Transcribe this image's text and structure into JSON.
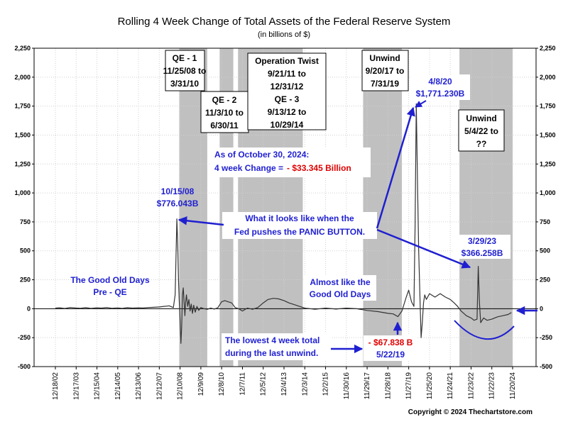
{
  "chart_data": {
    "type": "line",
    "title": "Rolling 4 Week Change of Total Assets of the Federal Reserve System",
    "subtitle": "(in billions of $)",
    "ylim": [
      -500,
      2250
    ],
    "yticks": [
      -500,
      -250,
      0,
      250,
      500,
      750,
      1000,
      1250,
      1500,
      1750,
      2000,
      2250
    ],
    "ytick_labels": [
      "-500",
      "-250",
      "0",
      "250",
      "500",
      "750",
      "1,000",
      "1,250",
      "1,500",
      "1,750",
      "2,000",
      "2,250"
    ],
    "ytick_labels_right": [
      "-500",
      "-250",
      "0",
      "250",
      "500",
      "750",
      "1,000",
      "1,250",
      "1,500",
      "1,750",
      "2,000",
      "2,250"
    ],
    "xlim": [
      "2002-12-18",
      "2024-11-20"
    ],
    "xtick_dates": [
      "2002-12-18",
      "2003-12-17",
      "2004-12-15",
      "2005-12-14",
      "2006-12-13",
      "2007-12-12",
      "2008-12-10",
      "2009-12-09",
      "2010-12-08",
      "2011-12-07",
      "2012-12-05",
      "2013-12-04",
      "2014-12-03",
      "2015-12-02",
      "2016-11-30",
      "2017-11-29",
      "2018-11-28",
      "2019-11-27",
      "2020-11-25",
      "2021-11-24",
      "2022-11-23",
      "2023-11-22",
      "2024-11-20"
    ],
    "xtick_labels": [
      "12/18/02",
      "12/17/03",
      "12/15/04",
      "12/14/05",
      "12/13/06",
      "12/12/07",
      "12/10/08",
      "12/9/09",
      "12/8/10",
      "12/7/11",
      "12/5/12",
      "12/4/13",
      "12/3/14",
      "12/2/15",
      "11/30/16",
      "11/29/17",
      "11/28/18",
      "11/27/19",
      "11/25/20",
      "11/24/21",
      "11/23/22",
      "11/22/23",
      "11/20/24"
    ],
    "shaded_periods": [
      {
        "start": "2008-11-25",
        "end": "2010-03-31"
      },
      {
        "start": "2010-11-03",
        "end": "2011-06-30"
      },
      {
        "start": "2011-09-21",
        "end": "2014-10-29"
      },
      {
        "start": "2017-09-20",
        "end": "2019-07-31"
      },
      {
        "start": "2022-05-04",
        "end": "2024-11-20"
      }
    ],
    "series": [
      {
        "points": [
          [
            "2002-12-18",
            5
          ],
          [
            "2003-03-01",
            8
          ],
          [
            "2003-06-01",
            2
          ],
          [
            "2003-09-01",
            10
          ],
          [
            "2003-12-17",
            6
          ],
          [
            "2004-03-01",
            4
          ],
          [
            "2004-06-01",
            9
          ],
          [
            "2004-09-01",
            3
          ],
          [
            "2004-12-15",
            8
          ],
          [
            "2005-03-01",
            5
          ],
          [
            "2005-06-01",
            10
          ],
          [
            "2005-09-01",
            4
          ],
          [
            "2005-12-14",
            7
          ],
          [
            "2006-03-01",
            3
          ],
          [
            "2006-06-01",
            9
          ],
          [
            "2006-09-01",
            5
          ],
          [
            "2006-12-13",
            8
          ],
          [
            "2007-03-01",
            6
          ],
          [
            "2007-06-01",
            10
          ],
          [
            "2007-09-01",
            12
          ],
          [
            "2007-12-12",
            15
          ],
          [
            "2008-03-01",
            20
          ],
          [
            "2008-06-01",
            25
          ],
          [
            "2008-08-15",
            10
          ],
          [
            "2008-09-15",
            120
          ],
          [
            "2008-10-15",
            776
          ],
          [
            "2008-10-29",
            560
          ],
          [
            "2008-11-12",
            250
          ],
          [
            "2008-11-26",
            60
          ],
          [
            "2008-12-10",
            -100
          ],
          [
            "2008-12-24",
            -300
          ],
          [
            "2009-01-07",
            -150
          ],
          [
            "2009-01-21",
            120
          ],
          [
            "2009-02-04",
            180
          ],
          [
            "2009-02-18",
            60
          ],
          [
            "2009-03-04",
            -60
          ],
          [
            "2009-03-18",
            60
          ],
          [
            "2009-04-01",
            120
          ],
          [
            "2009-04-22",
            20
          ],
          [
            "2009-05-13",
            80
          ],
          [
            "2009-06-03",
            -20
          ],
          [
            "2009-06-24",
            40
          ],
          [
            "2009-07-15",
            -40
          ],
          [
            "2009-08-05",
            30
          ],
          [
            "2009-09-02",
            -30
          ],
          [
            "2009-10-01",
            20
          ],
          [
            "2009-11-01",
            -15
          ],
          [
            "2009-12-09",
            10
          ],
          [
            "2010-02-01",
            0
          ],
          [
            "2010-04-01",
            -5
          ],
          [
            "2010-06-01",
            5
          ],
          [
            "2010-08-01",
            -3
          ],
          [
            "2010-10-01",
            8
          ],
          [
            "2010-12-08",
            60
          ],
          [
            "2011-02-01",
            70
          ],
          [
            "2011-04-01",
            60
          ],
          [
            "2011-06-01",
            50
          ],
          [
            "2011-08-01",
            10
          ],
          [
            "2011-10-01",
            0
          ],
          [
            "2011-12-07",
            -20
          ],
          [
            "2012-03-01",
            5
          ],
          [
            "2012-06-01",
            -5
          ],
          [
            "2012-09-01",
            10
          ],
          [
            "2012-12-05",
            50
          ],
          [
            "2013-03-01",
            80
          ],
          [
            "2013-06-01",
            90
          ],
          [
            "2013-09-01",
            85
          ],
          [
            "2013-12-04",
            70
          ],
          [
            "2014-03-01",
            50
          ],
          [
            "2014-06-01",
            35
          ],
          [
            "2014-09-01",
            20
          ],
          [
            "2014-12-03",
            5
          ],
          [
            "2015-06-01",
            -5
          ],
          [
            "2015-12-02",
            5
          ],
          [
            "2016-06-01",
            -3
          ],
          [
            "2016-11-30",
            5
          ],
          [
            "2017-06-01",
            0
          ],
          [
            "2017-11-29",
            -15
          ],
          [
            "2018-06-01",
            -25
          ],
          [
            "2018-11-28",
            -40
          ],
          [
            "2019-03-01",
            -45
          ],
          [
            "2019-05-22",
            -68
          ],
          [
            "2019-08-01",
            -20
          ],
          [
            "2019-10-15",
            100
          ],
          [
            "2019-11-27",
            160
          ],
          [
            "2020-01-15",
            60
          ],
          [
            "2020-02-26",
            20
          ],
          [
            "2020-03-18",
            700
          ],
          [
            "2020-04-08",
            1771
          ],
          [
            "2020-04-29",
            1100
          ],
          [
            "2020-05-20",
            500
          ],
          [
            "2020-06-10",
            120
          ],
          [
            "2020-07-01",
            -250
          ],
          [
            "2020-07-22",
            -120
          ],
          [
            "2020-08-12",
            50
          ],
          [
            "2020-09-02",
            120
          ],
          [
            "2020-10-01",
            80
          ],
          [
            "2020-11-25",
            130
          ],
          [
            "2021-03-01",
            100
          ],
          [
            "2021-06-01",
            130
          ],
          [
            "2021-09-01",
            100
          ],
          [
            "2021-11-24",
            80
          ],
          [
            "2022-02-01",
            50
          ],
          [
            "2022-04-01",
            20
          ],
          [
            "2022-06-01",
            -20
          ],
          [
            "2022-09-01",
            -60
          ],
          [
            "2022-11-23",
            -80
          ],
          [
            "2023-01-15",
            -100
          ],
          [
            "2023-03-08",
            -90
          ],
          [
            "2023-03-29",
            366
          ],
          [
            "2023-04-19",
            50
          ],
          [
            "2023-05-10",
            -120
          ],
          [
            "2023-07-01",
            -80
          ],
          [
            "2023-09-01",
            -100
          ],
          [
            "2023-11-22",
            -90
          ],
          [
            "2024-03-01",
            -70
          ],
          [
            "2024-06-01",
            -60
          ],
          [
            "2024-09-01",
            -50
          ],
          [
            "2024-10-30",
            -33
          ]
        ]
      }
    ],
    "annotations": {
      "qe1": [
        "QE - 1",
        "11/25/08 to",
        "3/31/10"
      ],
      "qe2": [
        "QE - 2",
        "11/3/10 to",
        "6/30/11"
      ],
      "op_twist": [
        "Operation Twist",
        "9/21/11 to",
        "12/31/12",
        "QE - 3",
        "9/13/12 to",
        "10/29/14"
      ],
      "unwind1": [
        "Unwind",
        "9/20/17 to",
        "7/31/19"
      ],
      "unwind2": [
        "Unwind",
        "5/4/22 to",
        "??"
      ],
      "peak_2020": [
        "4/8/20",
        "$1,771.230B"
      ],
      "peak_2008": [
        "10/15/08",
        "$776.043B"
      ],
      "peak_2023": [
        "3/29/23",
        "$366.258B"
      ],
      "as_of": [
        "As of October 30, 2024:",
        "4 week Change =",
        "- $33.345 Billion"
      ],
      "panic": [
        "What it looks like when the",
        "Fed pushes the PANIC BUTTON."
      ],
      "good_old_days": [
        "The Good Old Days",
        "Pre - QE"
      ],
      "almost_like": [
        "Almost like the",
        "Good Old Days"
      ],
      "lowest": [
        "The lowest 4 week total",
        "during the last unwind."
      ],
      "low_value": [
        "- $67.838 B",
        "5/22/19"
      ],
      "copyright": "Copyright © 2024 Thechartstore.com"
    },
    "colors": {
      "line": "#333333",
      "shade": "#c0c0c0",
      "annotation_blue": "#1f1fd1",
      "annotation_red": "#e00000",
      "text": "#000000"
    }
  }
}
